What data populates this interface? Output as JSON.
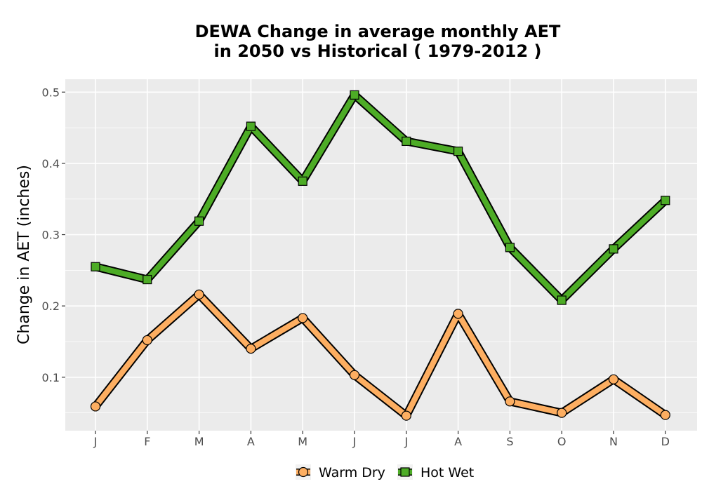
{
  "chart_data": {
    "type": "line",
    "title_line1": "DEWA  Change in average monthly AET",
    "title_line2": "in 2050 vs Historical ( 1979-2012 )",
    "ylabel": "Change in AET (inches)",
    "xlabel": "",
    "categories": [
      "J",
      "F",
      "M",
      "A",
      "M",
      "J",
      "J",
      "A",
      "S",
      "O",
      "N",
      "D"
    ],
    "yticks": [
      0.1,
      0.2,
      0.3,
      0.4,
      0.5
    ],
    "ytick_labels": [
      "0.1",
      "0.2",
      "0.3",
      "0.4",
      "0.5"
    ],
    "ylim": [
      0.025,
      0.518
    ],
    "grid": true,
    "legend_position": "bottom",
    "series": [
      {
        "name": "Warm Dry",
        "values": [
          0.059,
          0.152,
          0.216,
          0.14,
          0.183,
          0.103,
          0.046,
          0.189,
          0.066,
          0.05,
          0.097,
          0.047
        ],
        "color": "#FDAE61",
        "marker": "circle"
      },
      {
        "name": "Hot Wet",
        "values": [
          0.255,
          0.237,
          0.319,
          0.452,
          0.375,
          0.496,
          0.431,
          0.417,
          0.282,
          0.208,
          0.28,
          0.348
        ],
        "color": "#4DAC26",
        "marker": "square"
      }
    ],
    "panel_color": "#EBEBEB",
    "grid_color": "#FFFFFF"
  }
}
